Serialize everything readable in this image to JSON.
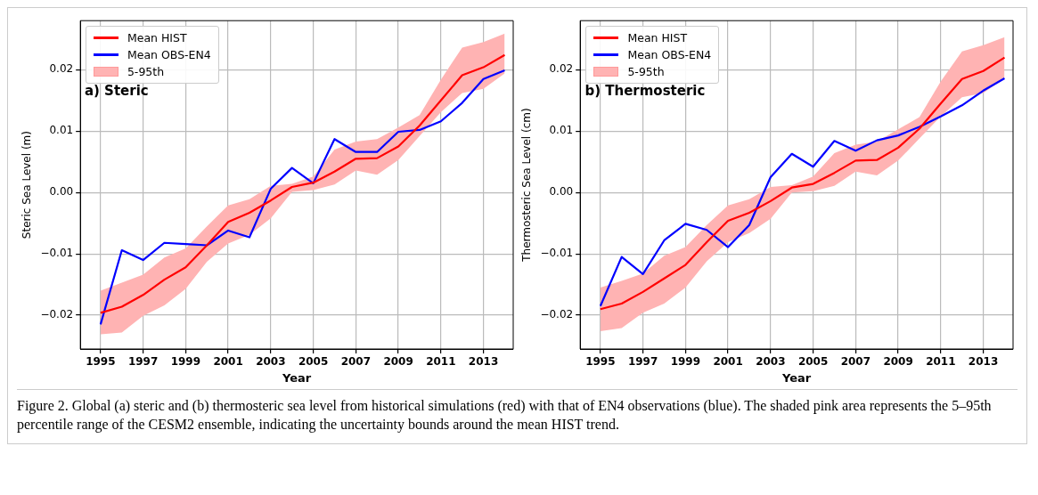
{
  "chart_data": [
    {
      "type": "line",
      "ylabel": "Steric Sea Level (m)",
      "xlabel": "Year",
      "x": [
        1995,
        1996,
        1997,
        1998,
        1999,
        2000,
        2001,
        2002,
        2003,
        2004,
        2005,
        2006,
        2007,
        2008,
        2009,
        2010,
        2011,
        2012,
        2013,
        2014
      ],
      "xlim": [
        1994.05,
        2014.4
      ],
      "xticks": [
        1995,
        1997,
        1999,
        2001,
        2003,
        2005,
        2007,
        2009,
        2011,
        2013
      ],
      "ylim": [
        -0.0255,
        0.028
      ],
      "yticks": [
        {
          "value": -0.02,
          "label": "−0.02"
        },
        {
          "value": -0.01,
          "label": "−0.01"
        },
        {
          "value": 0,
          "label": "0.00"
        },
        {
          "value": 0.01,
          "label": "0.01"
        },
        {
          "value": 0.02,
          "label": "0.02"
        }
      ],
      "grid": true,
      "legend": "top left",
      "marker": "none",
      "line_style": "solid",
      "annotations": [
        "a) Steric",
        "5-95th"
      ],
      "series": [
        {
          "name": "Mean HIST",
          "color": "#ff0000",
          "values": [
            -0.0196,
            -0.0186,
            -0.0167,
            -0.0142,
            -0.0122,
            -0.0086,
            -0.0048,
            -0.0033,
            -0.0013,
            0.0009,
            0.0016,
            0.0034,
            0.0055,
            0.0056,
            0.0075,
            0.0109,
            0.015,
            0.0191,
            0.0204,
            0.0224
          ],
          "lower": [
            -0.0231,
            -0.0228,
            -0.0201,
            -0.0184,
            -0.0157,
            -0.0113,
            -0.0083,
            -0.0069,
            -0.0042,
            0.0001,
            0.0004,
            0.0013,
            0.0036,
            0.0029,
            0.0053,
            0.0092,
            0.0131,
            0.0162,
            0.0169,
            0.0194
          ],
          "upper": [
            -0.016,
            -0.0147,
            -0.0134,
            -0.0106,
            -0.0091,
            -0.0055,
            -0.0021,
            -0.0011,
            0.0011,
            0.0014,
            0.0026,
            0.007,
            0.0083,
            0.0087,
            0.0106,
            0.0126,
            0.0184,
            0.0236,
            0.0245,
            0.0259
          ]
        },
        {
          "name": "Mean OBS-EN4",
          "color": "#0000ff",
          "values": [
            -0.0215,
            -0.0094,
            -0.011,
            -0.0082,
            -0.0084,
            -0.0086,
            -0.0062,
            -0.0073,
            0.0006,
            0.004,
            0.0015,
            0.0087,
            0.0066,
            0.0066,
            0.0099,
            0.0102,
            0.0116,
            0.0146,
            0.0185,
            0.0199
          ]
        }
      ]
    },
    {
      "type": "line",
      "ylabel": "Thermosteric Sea Level (cm)",
      "xlabel": "Year",
      "x": [
        1995,
        1996,
        1997,
        1998,
        1999,
        2000,
        2001,
        2002,
        2003,
        2004,
        2005,
        2006,
        2007,
        2008,
        2009,
        2010,
        2011,
        2012,
        2013,
        2014
      ],
      "xlim": [
        1994.05,
        2014.4
      ],
      "xticks": [
        1995,
        1997,
        1999,
        2001,
        2003,
        2005,
        2007,
        2009,
        2011,
        2013
      ],
      "ylim": [
        -0.0255,
        0.028
      ],
      "yticks": [
        {
          "value": -0.02,
          "label": "−0.02"
        },
        {
          "value": -0.01,
          "label": "−0.01"
        },
        {
          "value": 0,
          "label": "0.00"
        },
        {
          "value": 0.01,
          "label": "0.01"
        },
        {
          "value": 0.02,
          "label": "0.02"
        }
      ],
      "grid": true,
      "legend": "top left",
      "marker": "none",
      "line_style": "solid",
      "annotations": [
        "b) Thermosteric",
        "5-95th",
        "Figure 2. Global (a) steric and (b) thermosteric sea level from historical simulations (red) with that of EN4 observations (blue). The shaded pink area represents the 5–95th percentile range of the CESM2 ensemble, indicating the uncertainty bounds around the mean HIST trend."
      ],
      "series": [
        {
          "name": "Mean HIST",
          "color": "#ff0000",
          "values": [
            -0.019,
            -0.0181,
            -0.0162,
            -0.014,
            -0.0118,
            -0.0081,
            -0.0046,
            -0.0033,
            -0.0014,
            0.0008,
            0.0014,
            0.0032,
            0.0052,
            0.0053,
            0.0073,
            0.0104,
            0.0145,
            0.0185,
            0.0198,
            0.022
          ],
          "lower": [
            -0.0226,
            -0.0221,
            -0.0196,
            -0.0181,
            -0.0155,
            -0.0112,
            -0.0081,
            -0.0066,
            -0.0043,
            0.0,
            0.0002,
            0.0011,
            0.0034,
            0.0028,
            0.0052,
            0.0088,
            0.0124,
            0.0155,
            0.0162,
            0.0186
          ],
          "upper": [
            -0.0155,
            -0.0144,
            -0.0132,
            -0.0103,
            -0.0089,
            -0.0053,
            -0.0021,
            -0.0011,
            0.0009,
            0.0012,
            0.0026,
            0.0064,
            0.0078,
            0.0083,
            0.0103,
            0.0123,
            0.0181,
            0.023,
            0.024,
            0.0253
          ]
        },
        {
          "name": "Mean OBS-EN4",
          "color": "#0000ff",
          "values": [
            -0.0185,
            -0.0105,
            -0.0133,
            -0.0078,
            -0.0051,
            -0.0061,
            -0.0089,
            -0.0053,
            0.0025,
            0.0063,
            0.0042,
            0.0084,
            0.0068,
            0.0085,
            0.0093,
            0.0107,
            0.0124,
            0.0142,
            0.0166,
            0.0186
          ]
        }
      ]
    }
  ]
}
